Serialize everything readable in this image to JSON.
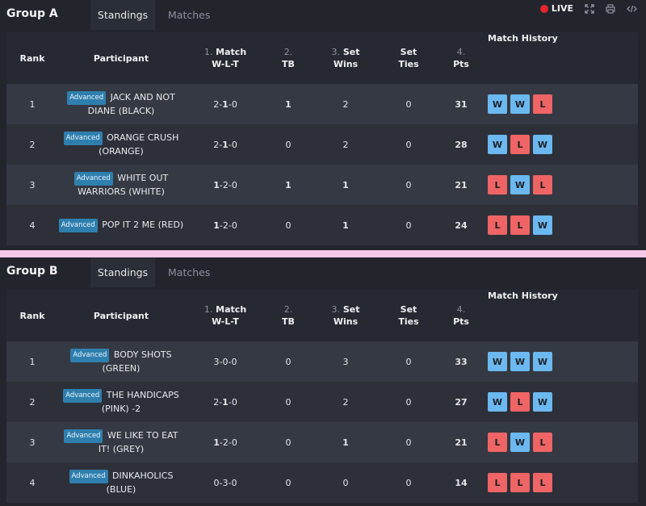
{
  "toolbar": {
    "live_label": "LIVE"
  },
  "colors": {
    "live": "#e5242c",
    "win": "#6cb8f0",
    "loss": "#ef6464",
    "badge": "#2f7fae",
    "divider": "#f5c8e8"
  },
  "icons": [
    "live-dot-icon",
    "fullscreen-icon",
    "print-icon",
    "embed-code-icon"
  ],
  "headers": {
    "rank": "Rank",
    "participant": "Participant",
    "match_num": "1.",
    "match_a": "Match",
    "match_b": "W-L-T",
    "tb_num": "2.",
    "tb": "TB",
    "set_num": "3.",
    "set_a": "Set",
    "set_b": "Wins",
    "ties_a": "Set",
    "ties_b": "Ties",
    "pts_num": "4.",
    "pts": "Pts",
    "history": "Match History"
  },
  "groups": [
    {
      "title": "Group A",
      "tabs": [
        "Standings",
        "Matches"
      ],
      "rows": [
        {
          "rank": "1",
          "badge": "Advanced",
          "name": "JACK AND NOT DIANE (BLACK)",
          "w": "2",
          "l": "1",
          "t": "0",
          "bold": "l",
          "tb": "1",
          "tb_bold": true,
          "set_wins": "2",
          "set_bold": false,
          "ties": "0",
          "pts": "31",
          "history": [
            "W",
            "W",
            "L"
          ]
        },
        {
          "rank": "2",
          "badge": "Advanced",
          "name": "ORANGE CRUSH (ORANGE)",
          "w": "2",
          "l": "1",
          "t": "0",
          "bold": "l",
          "tb": "0",
          "tb_bold": false,
          "set_wins": "2",
          "set_bold": false,
          "ties": "0",
          "pts": "28",
          "history": [
            "W",
            "L",
            "W"
          ]
        },
        {
          "rank": "3",
          "badge": "Advanced",
          "name": "WHITE OUT WARRIORS (WHITE)",
          "w": "1",
          "l": "2",
          "t": "0",
          "bold": "w",
          "tb": "1",
          "tb_bold": true,
          "set_wins": "1",
          "set_bold": true,
          "ties": "0",
          "pts": "21",
          "history": [
            "L",
            "W",
            "L"
          ]
        },
        {
          "rank": "4",
          "badge": "Advanced",
          "name": "POP IT 2 ME (RED)",
          "w": "1",
          "l": "2",
          "t": "0",
          "bold": "w",
          "tb": "0",
          "tb_bold": false,
          "set_wins": "1",
          "set_bold": true,
          "ties": "0",
          "pts": "24",
          "history": [
            "L",
            "L",
            "W"
          ]
        }
      ]
    },
    {
      "title": "Group B",
      "tabs": [
        "Standings",
        "Matches"
      ],
      "rows": [
        {
          "rank": "1",
          "badge": "Advanced",
          "name": "BODY SHOTS (GREEN)",
          "w": "3",
          "l": "0",
          "t": "0",
          "bold": "",
          "tb": "0",
          "tb_bold": false,
          "set_wins": "3",
          "set_bold": false,
          "ties": "0",
          "pts": "33",
          "history": [
            "W",
            "W",
            "W"
          ]
        },
        {
          "rank": "2",
          "badge": "Advanced",
          "name": "THE HANDICAPS (PINK) -2",
          "w": "2",
          "l": "1",
          "t": "0",
          "bold": "l",
          "tb": "0",
          "tb_bold": false,
          "set_wins": "2",
          "set_bold": false,
          "ties": "0",
          "pts": "27",
          "history": [
            "W",
            "L",
            "W"
          ]
        },
        {
          "rank": "3",
          "badge": "Advanced",
          "name": "WE LIKE TO EAT IT! (GREY)",
          "w": "1",
          "l": "2",
          "t": "0",
          "bold": "w",
          "tb": "0",
          "tb_bold": false,
          "set_wins": "1",
          "set_bold": true,
          "ties": "0",
          "pts": "21",
          "history": [
            "L",
            "W",
            "L"
          ]
        },
        {
          "rank": "4",
          "badge": "Advanced",
          "name": "DINKAHOLICS (BLUE)",
          "w": "0",
          "l": "3",
          "t": "0",
          "bold": "",
          "tb": "0",
          "tb_bold": false,
          "set_wins": "0",
          "set_bold": false,
          "ties": "0",
          "pts": "14",
          "history": [
            "L",
            "L",
            "L"
          ]
        }
      ]
    }
  ]
}
